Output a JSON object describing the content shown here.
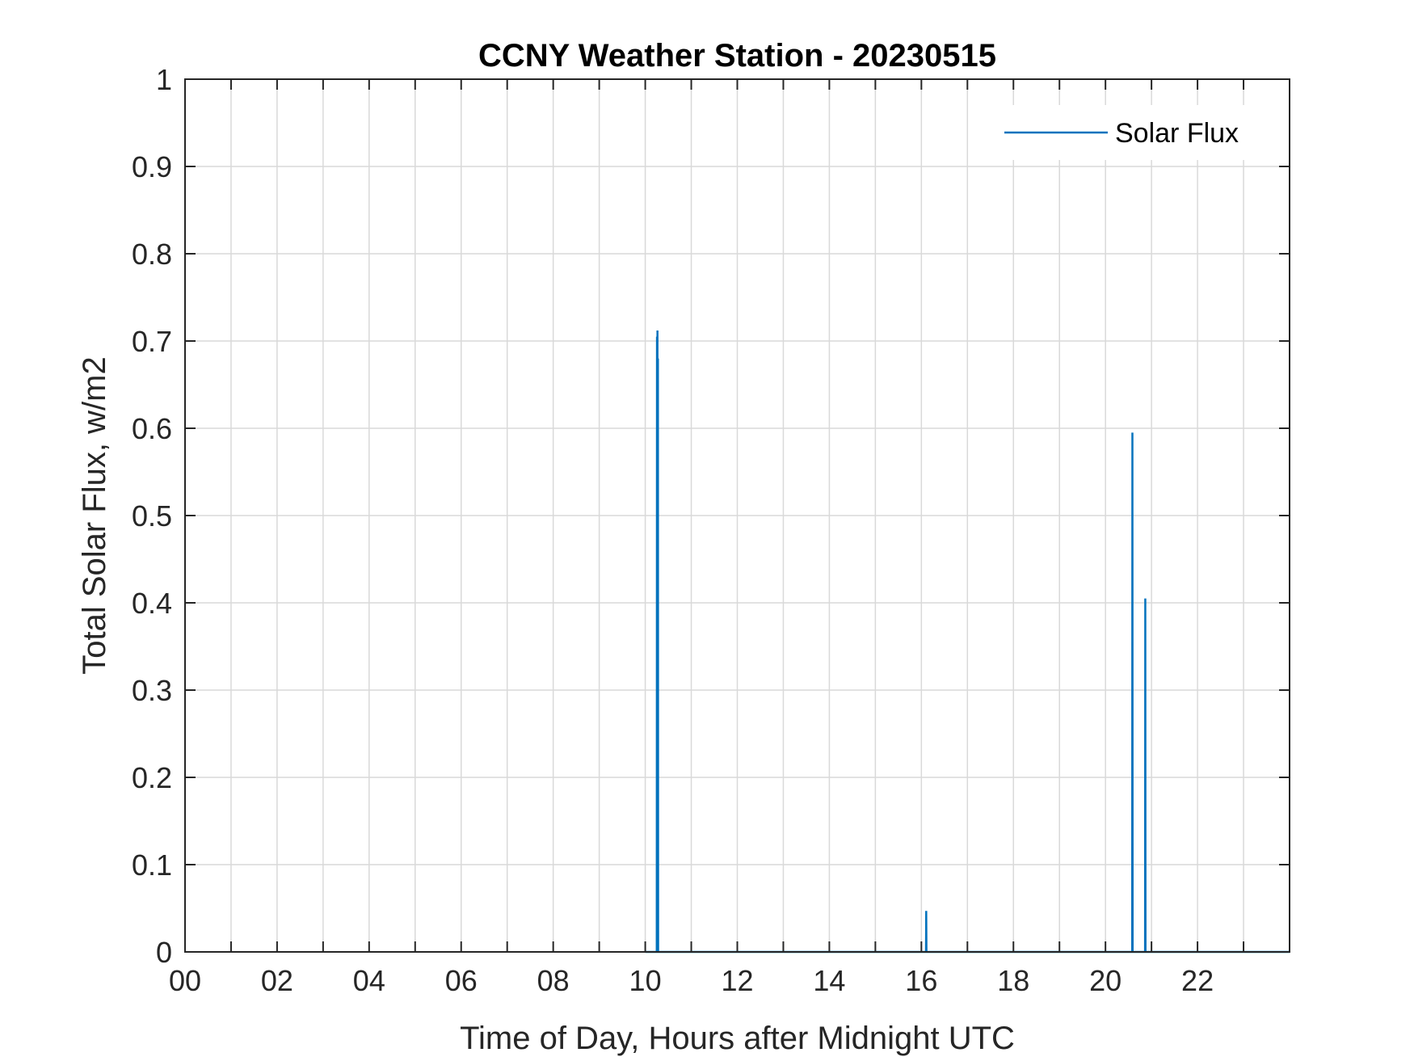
{
  "chart_data": {
    "type": "line",
    "title": "CCNY Weather Station - 20230515",
    "xlabel": "Time of Day, Hours after Midnight UTC",
    "ylabel": "Total Solar Flux, w/m2",
    "xlim": [
      0,
      24
    ],
    "ylim": [
      0,
      1
    ],
    "x_ticks": [
      0,
      2,
      4,
      6,
      8,
      10,
      12,
      14,
      16,
      18,
      20,
      22
    ],
    "x_tick_labels": [
      "00",
      "02",
      "04",
      "06",
      "08",
      "10",
      "12",
      "14",
      "16",
      "18",
      "20",
      "22"
    ],
    "x_grid": [
      0,
      1,
      2,
      3,
      4,
      5,
      6,
      7,
      8,
      9,
      10,
      11,
      12,
      13,
      14,
      15,
      16,
      17,
      18,
      19,
      20,
      21,
      22,
      23
    ],
    "y_ticks": [
      0,
      0.1,
      0.2,
      0.3,
      0.4,
      0.5,
      0.6,
      0.7,
      0.8,
      0.9,
      1
    ],
    "y_tick_labels": [
      "0",
      "0.1",
      "0.2",
      "0.3",
      "0.4",
      "0.5",
      "0.6",
      "0.7",
      "0.8",
      "0.9",
      "1"
    ],
    "grid": true,
    "legend_position": "top-right",
    "series": [
      {
        "name": "Solar Flux",
        "color": "#0072BD",
        "x": [
          10.0,
          10.25,
          10.255,
          10.26,
          10.265,
          10.27,
          10.275,
          10.28,
          10.29,
          10.3,
          16.0,
          16.1,
          16.105,
          16.11,
          20.0,
          20.58,
          20.585,
          20.59,
          20.86,
          20.865,
          20.87,
          24.0
        ],
        "values": [
          0,
          0,
          0.705,
          0,
          0.712,
          0,
          0.68,
          0,
          0,
          0,
          0,
          0,
          0.047,
          0,
          0,
          0,
          0.595,
          0,
          0,
          0.405,
          0,
          0
        ]
      }
    ]
  }
}
